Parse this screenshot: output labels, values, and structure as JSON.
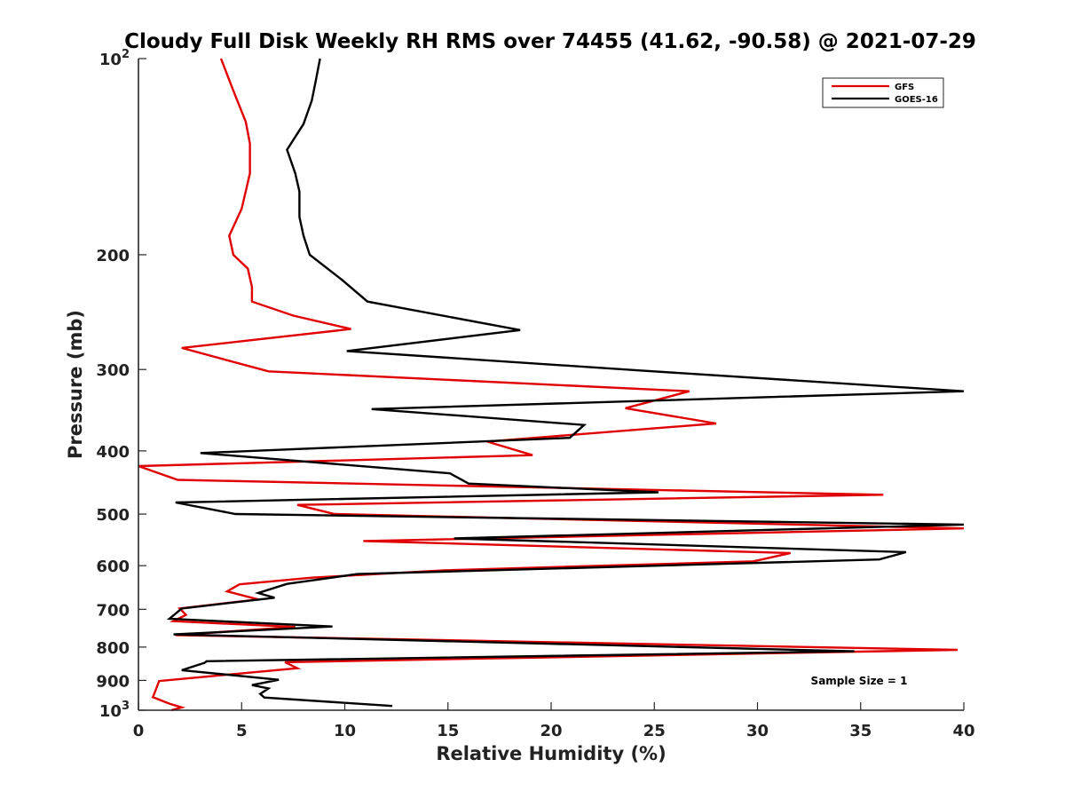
{
  "chart_data": {
    "type": "line",
    "title": "Cloudy Full Disk Weekly RH RMS over 74455 (41.62, -90.58) @ 2021-07-29",
    "xlabel": "Relative Humidity (%)",
    "ylabel": "Pressure (mb)",
    "xlim": [
      0,
      40
    ],
    "ylim": [
      100,
      1000
    ],
    "yscale": "log",
    "y_reversed": true,
    "grid": false,
    "legend_position": "top-right",
    "x_ticks": [
      "0",
      "5",
      "10",
      "15",
      "20",
      "25",
      "30",
      "35",
      "40"
    ],
    "x_tick_values": [
      0,
      5,
      10,
      15,
      20,
      25,
      30,
      35,
      40
    ],
    "y_ticks": [
      {
        "value": 100,
        "base": "10",
        "exp": "2"
      },
      {
        "value": 200,
        "label": "200"
      },
      {
        "value": 300,
        "label": "300"
      },
      {
        "value": 400,
        "label": "400"
      },
      {
        "value": 500,
        "label": "500"
      },
      {
        "value": 600,
        "label": "600"
      },
      {
        "value": 700,
        "label": "700"
      },
      {
        "value": 800,
        "label": "800"
      },
      {
        "value": 900,
        "label": "900"
      },
      {
        "value": 1000,
        "base": "10",
        "exp": "3"
      }
    ],
    "annotation": "Sample Size = 1",
    "series": [
      {
        "name": "GFS",
        "color": "#e00000",
        "points": [
          [
            4.0,
            100
          ],
          [
            4.6,
            112
          ],
          [
            5.2,
            125
          ],
          [
            5.4,
            135
          ],
          [
            5.4,
            150
          ],
          [
            5.0,
            170
          ],
          [
            4.4,
            187
          ],
          [
            4.6,
            200
          ],
          [
            5.3,
            210
          ],
          [
            5.5,
            224
          ],
          [
            5.5,
            236
          ],
          [
            7.5,
            248
          ],
          [
            10.3,
            260
          ],
          [
            2.1,
            278
          ],
          [
            6.3,
            302
          ],
          [
            26.7,
            324
          ],
          [
            23.6,
            344
          ],
          [
            28.0,
            363
          ],
          [
            16.9,
            387
          ],
          [
            19.1,
            406
          ],
          [
            0.0,
            422
          ],
          [
            1.9,
            443
          ],
          [
            36.1,
            467
          ],
          [
            7.7,
            484
          ],
          [
            9.5,
            500
          ],
          [
            40.0,
            526
          ],
          [
            10.9,
            550
          ],
          [
            31.6,
            574
          ],
          [
            29.8,
            591
          ],
          [
            14.8,
            610
          ],
          [
            8.4,
            626
          ],
          [
            4.9,
            641
          ],
          [
            4.3,
            657
          ],
          [
            5.8,
            676
          ],
          [
            2.0,
            698
          ],
          [
            2.3,
            714
          ],
          [
            1.7,
            730
          ],
          [
            7.6,
            745
          ],
          [
            1.8,
            767
          ],
          [
            39.7,
            808
          ],
          [
            7.1,
            844
          ],
          [
            7.7,
            862
          ],
          [
            1.0,
            902
          ],
          [
            0.7,
            955
          ],
          [
            1.5,
            977
          ],
          [
            2.1,
            990
          ],
          [
            1.6,
            1000
          ]
        ]
      },
      {
        "name": "GOES-16",
        "color": "#000000",
        "points": [
          [
            8.8,
            100
          ],
          [
            8.6,
            108
          ],
          [
            8.4,
            116
          ],
          [
            8.0,
            126
          ],
          [
            7.2,
            138
          ],
          [
            7.6,
            150
          ],
          [
            7.8,
            160
          ],
          [
            7.8,
            175
          ],
          [
            8.0,
            187
          ],
          [
            8.3,
            200
          ],
          [
            9.9,
            219
          ],
          [
            11.1,
            236
          ],
          [
            18.5,
            261
          ],
          [
            10.1,
            281
          ],
          [
            24.3,
            301
          ],
          [
            40.0,
            324
          ],
          [
            11.3,
            345
          ],
          [
            21.6,
            365
          ],
          [
            20.9,
            382
          ],
          [
            3.0,
            403
          ],
          [
            15.1,
            433
          ],
          [
            16.0,
            449
          ],
          [
            25.2,
            463
          ],
          [
            1.8,
            480
          ],
          [
            4.7,
            500
          ],
          [
            40.0,
            519
          ],
          [
            15.3,
            545
          ],
          [
            37.2,
            572
          ],
          [
            35.9,
            587
          ],
          [
            10.6,
            618
          ],
          [
            7.2,
            640
          ],
          [
            5.8,
            661
          ],
          [
            6.6,
            672
          ],
          [
            2.1,
            698
          ],
          [
            1.5,
            724
          ],
          [
            9.4,
            744
          ],
          [
            1.7,
            765
          ],
          [
            34.7,
            812
          ],
          [
            3.3,
            841
          ],
          [
            3.2,
            846
          ],
          [
            2.1,
            868
          ],
          [
            6.8,
            898
          ],
          [
            5.5,
            915
          ],
          [
            6.3,
            926
          ],
          [
            5.9,
            944
          ],
          [
            6.1,
            956
          ],
          [
            12.3,
            985
          ]
        ]
      }
    ]
  }
}
